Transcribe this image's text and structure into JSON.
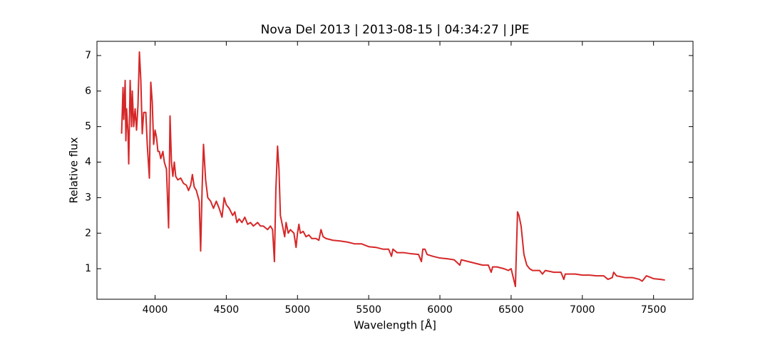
{
  "chart_data": {
    "type": "line",
    "title": "Nova Del 2013 | 2013-08-15 | 04:34:27 | JPE",
    "xlabel": "Wavelength [Å]",
    "ylabel": "Relative flux",
    "color": "#d62728",
    "xlim": [
      3592,
      7777
    ],
    "ylim": [
      0.14,
      7.4
    ],
    "xticks": [
      4000,
      4500,
      5000,
      5500,
      6000,
      6500,
      7000,
      7500
    ],
    "yticks": [
      1,
      2,
      3,
      4,
      5,
      6,
      7
    ],
    "x": [
      3765,
      3775,
      3780,
      3790,
      3795,
      3800,
      3810,
      3815,
      3825,
      3835,
      3840,
      3850,
      3860,
      3870,
      3880,
      3890,
      3900,
      3910,
      3920,
      3935,
      3945,
      3960,
      3970,
      3980,
      3990,
      4000,
      4010,
      4020,
      4030,
      4040,
      4055,
      4065,
      4080,
      4095,
      4105,
      4115,
      4125,
      4135,
      4145,
      4160,
      4180,
      4200,
      4220,
      4235,
      4250,
      4262,
      4275,
      4290,
      4310,
      4320,
      4330,
      4340,
      4355,
      4370,
      4390,
      4410,
      4430,
      4450,
      4470,
      4485,
      4500,
      4520,
      4545,
      4560,
      4575,
      4590,
      4610,
      4630,
      4650,
      4670,
      4690,
      4720,
      4740,
      4760,
      4790,
      4810,
      4825,
      4838,
      4848,
      4860,
      4870,
      4880,
      4895,
      4910,
      4920,
      4935,
      4950,
      4975,
      4990,
      5000,
      5010,
      5020,
      5040,
      5060,
      5080,
      5100,
      5130,
      5150,
      5165,
      5180,
      5200,
      5250,
      5300,
      5350,
      5400,
      5450,
      5500,
      5550,
      5600,
      5640,
      5660,
      5670,
      5700,
      5750,
      5800,
      5850,
      5870,
      5880,
      5895,
      5910,
      5950,
      6000,
      6050,
      6100,
      6140,
      6150,
      6200,
      6250,
      6300,
      6340,
      6360,
      6370,
      6400,
      6450,
      6480,
      6500,
      6530,
      6545,
      6555,
      6570,
      6590,
      6610,
      6630,
      6650,
      6700,
      6720,
      6740,
      6800,
      6850,
      6870,
      6880,
      6950,
      7000,
      7050,
      7100,
      7150,
      7180,
      7210,
      7220,
      7240,
      7300,
      7350,
      7400,
      7420,
      7450,
      7500,
      7550,
      7580
    ],
    "values": [
      4.8,
      6.1,
      5.2,
      6.3,
      4.6,
      5.5,
      4.8,
      3.95,
      6.3,
      5.0,
      6.0,
      5.0,
      5.5,
      4.9,
      5.6,
      7.1,
      6.3,
      4.8,
      5.4,
      5.4,
      4.5,
      3.55,
      6.25,
      5.7,
      4.5,
      4.9,
      4.7,
      4.3,
      4.3,
      4.1,
      4.3,
      4.0,
      3.8,
      2.15,
      5.3,
      4.0,
      3.6,
      4.0,
      3.6,
      3.5,
      3.55,
      3.4,
      3.35,
      3.2,
      3.35,
      3.65,
      3.3,
      3.2,
      2.9,
      1.5,
      3.2,
      4.5,
      3.5,
      3.0,
      2.9,
      2.7,
      2.9,
      2.7,
      2.45,
      3.0,
      2.8,
      2.7,
      2.5,
      2.6,
      2.3,
      2.4,
      2.3,
      2.45,
      2.25,
      2.3,
      2.2,
      2.3,
      2.2,
      2.2,
      2.1,
      2.2,
      2.1,
      1.2,
      3.2,
      4.45,
      3.8,
      2.5,
      2.2,
      1.9,
      2.3,
      2.0,
      2.1,
      2.0,
      1.6,
      2.0,
      2.25,
      2.0,
      2.05,
      1.9,
      1.95,
      1.85,
      1.85,
      1.8,
      2.1,
      1.9,
      1.85,
      1.8,
      1.78,
      1.75,
      1.7,
      1.7,
      1.62,
      1.6,
      1.55,
      1.55,
      1.35,
      1.55,
      1.45,
      1.45,
      1.42,
      1.4,
      1.2,
      1.55,
      1.55,
      1.4,
      1.35,
      1.3,
      1.28,
      1.25,
      1.1,
      1.25,
      1.2,
      1.15,
      1.1,
      1.1,
      0.9,
      1.05,
      1.05,
      1.0,
      0.95,
      1.0,
      0.5,
      2.6,
      2.5,
      2.2,
      1.4,
      1.1,
      1.0,
      0.95,
      0.95,
      0.85,
      0.95,
      0.9,
      0.9,
      0.7,
      0.85,
      0.85,
      0.82,
      0.82,
      0.8,
      0.8,
      0.7,
      0.75,
      0.9,
      0.8,
      0.75,
      0.75,
      0.7,
      0.65,
      0.8,
      0.72,
      0.7,
      0.68
    ]
  }
}
